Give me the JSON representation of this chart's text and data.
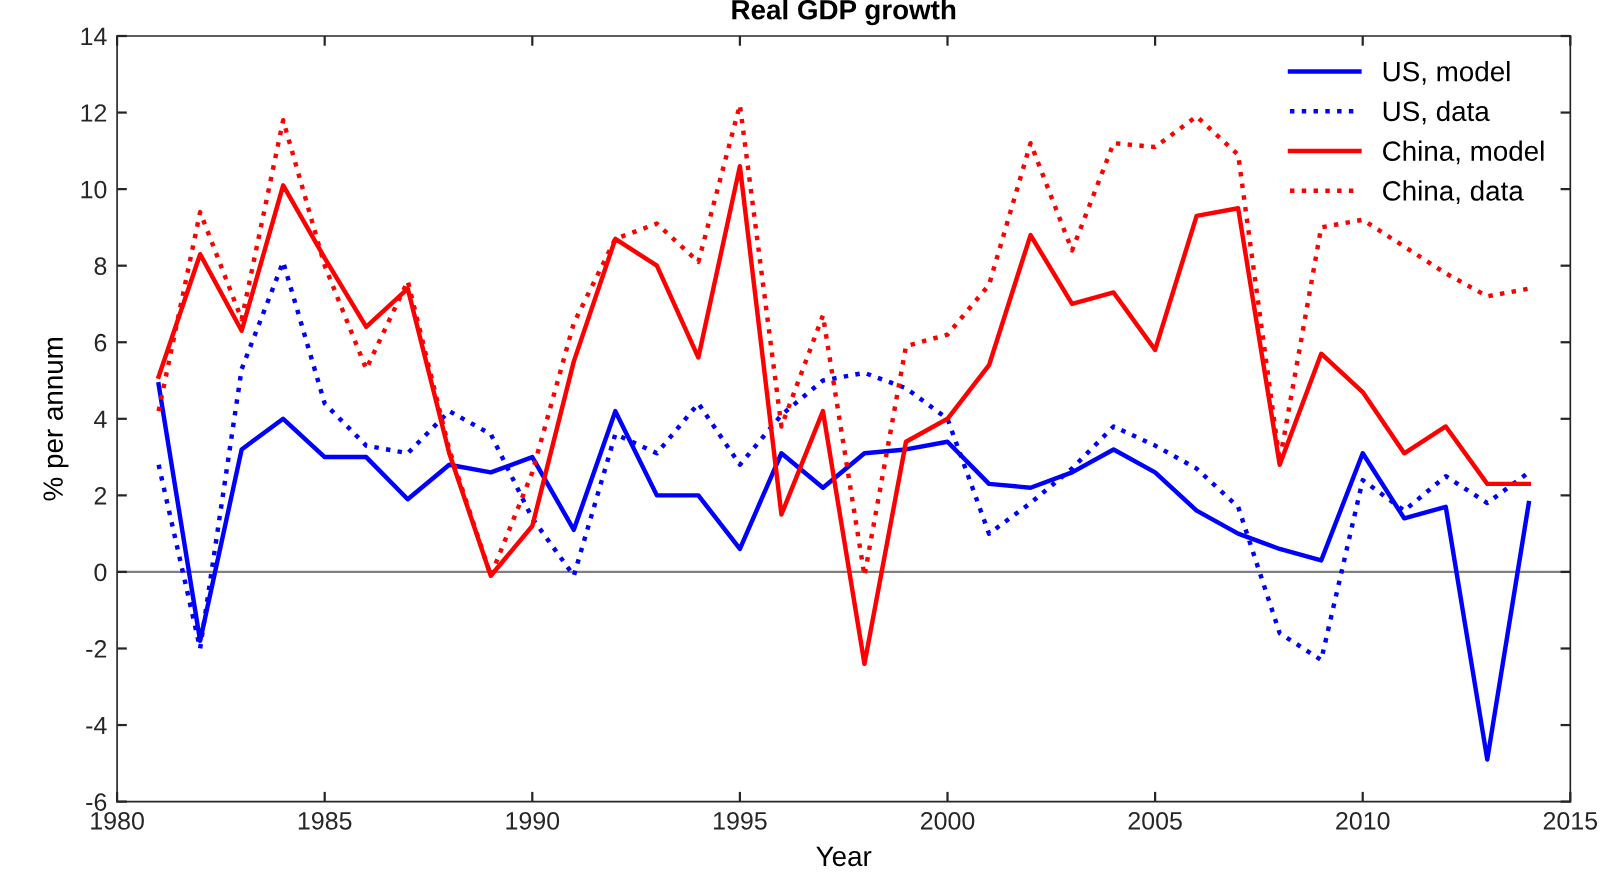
{
  "chart_data": {
    "type": "line",
    "title": "Real GDP growth",
    "xlabel": "Year",
    "ylabel": "% per annum",
    "x": [
      1981,
      1982,
      1983,
      1984,
      1985,
      1986,
      1987,
      1988,
      1989,
      1990,
      1991,
      1992,
      1993,
      1994,
      1995,
      1996,
      1997,
      1998,
      1999,
      2000,
      2001,
      2002,
      2003,
      2004,
      2005,
      2006,
      2007,
      2008,
      2009,
      2010,
      2011,
      2012,
      2013,
      2014
    ],
    "series": [
      {
        "name": "US, model",
        "color": "#0000ff",
        "line_style": "solid",
        "values": [
          4.9,
          -1.8,
          3.2,
          4.0,
          3.0,
          3.0,
          1.9,
          2.8,
          2.6,
          3.0,
          1.1,
          4.2,
          2.0,
          2.0,
          0.6,
          3.1,
          2.2,
          3.1,
          3.2,
          3.4,
          2.3,
          2.2,
          2.6,
          3.2,
          2.6,
          1.6,
          1.0,
          0.6,
          0.3,
          3.1,
          1.4,
          1.7,
          -4.9,
          1.8
        ]
      },
      {
        "name": "US, data",
        "color": "#0000ff",
        "line_style": "dotted",
        "values": [
          2.8,
          -2.0,
          5.3,
          8.1,
          4.4,
          3.3,
          3.1,
          4.2,
          3.6,
          1.4,
          -0.1,
          3.6,
          3.1,
          4.4,
          2.8,
          4.1,
          5.0,
          5.2,
          4.8,
          4.0,
          1.0,
          1.8,
          2.7,
          3.8,
          3.3,
          2.7,
          1.7,
          -1.6,
          -2.3,
          2.4,
          1.6,
          2.5,
          1.8,
          2.6
        ]
      },
      {
        "name": "China, model",
        "color": "#ff0000",
        "line_style": "solid",
        "values": [
          5.1,
          8.3,
          6.3,
          10.1,
          8.2,
          6.4,
          7.4,
          3.1,
          -0.1,
          1.2,
          5.5,
          8.7,
          8.0,
          5.6,
          10.6,
          1.5,
          4.2,
          -2.4,
          3.4,
          4.0,
          5.4,
          8.8,
          7.0,
          7.3,
          5.8,
          9.3,
          9.5,
          2.8,
          5.7,
          4.7,
          3.1,
          3.8,
          2.3,
          2.3
        ]
      },
      {
        "name": "China, data",
        "color": "#ff0000",
        "line_style": "dotted",
        "values": [
          4.2,
          9.4,
          6.6,
          11.8,
          8.0,
          5.3,
          7.6,
          3.2,
          -0.1,
          2.6,
          6.5,
          8.7,
          9.1,
          8.1,
          12.2,
          3.8,
          6.7,
          -0.1,
          5.9,
          6.2,
          7.5,
          11.2,
          8.4,
          11.2,
          11.1,
          11.9,
          10.9,
          2.9,
          9.0,
          9.2,
          8.5,
          7.8,
          7.2,
          7.4
        ]
      }
    ],
    "xlim": [
      1980,
      2015
    ],
    "xticks": [
      1980,
      1985,
      1990,
      1995,
      2000,
      2005,
      2010,
      2015
    ],
    "ylim": [
      -6,
      14
    ],
    "yticks": [
      -6,
      -4,
      -2,
      0,
      2,
      4,
      6,
      8,
      10,
      12,
      14
    ],
    "ref_lines": [
      {
        "axis": "y",
        "value": 0,
        "color": "#808080"
      }
    ],
    "grid": false,
    "legend": "top right",
    "marker": "none"
  }
}
